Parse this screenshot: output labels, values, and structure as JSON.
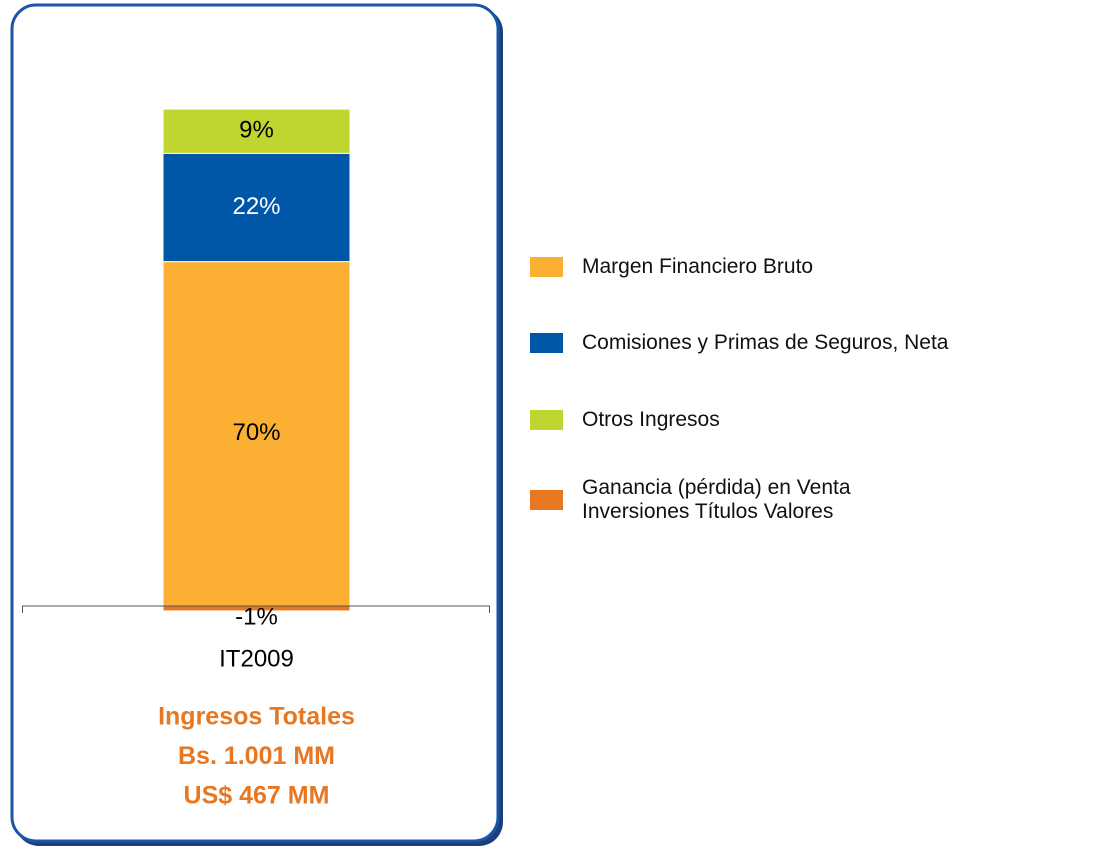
{
  "chart_data": {
    "type": "stacked-bar",
    "categories": [
      "IT2009"
    ],
    "series": [
      {
        "name": "Margen Financiero Bruto",
        "color": "#fbb034",
        "values": [
          70
        ],
        "value_labels": [
          "70%"
        ]
      },
      {
        "name": "Comisiones y Primas de Seguros, Neta",
        "color": "#0057a8",
        "values": [
          22
        ],
        "value_labels": [
          "22%"
        ]
      },
      {
        "name": "Otros Ingresos",
        "color": "#bfd630",
        "values": [
          9
        ],
        "value_labels": [
          "9%"
        ]
      },
      {
        "name": "Ganancia (pérdida) en Venta Inversiones Títulos Valores",
        "color": "#e87722",
        "values": [
          -1
        ],
        "value_labels": [
          "-1%"
        ]
      }
    ],
    "annotations": [
      "Ingresos Totales",
      "Bs. 1.001 MM",
      "US$ 467 MM"
    ],
    "legend": "right"
  }
}
